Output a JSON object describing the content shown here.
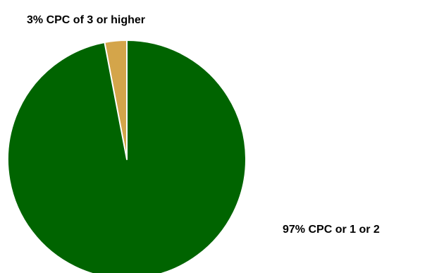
{
  "chart_data": {
    "type": "pie",
    "slices": [
      {
        "label": "3% CPC of 3 or higher",
        "value": 3,
        "color": "#d4a54a"
      },
      {
        "label": "97% CPC or 1 or 2",
        "value": 97,
        "color": "#006400"
      }
    ]
  }
}
